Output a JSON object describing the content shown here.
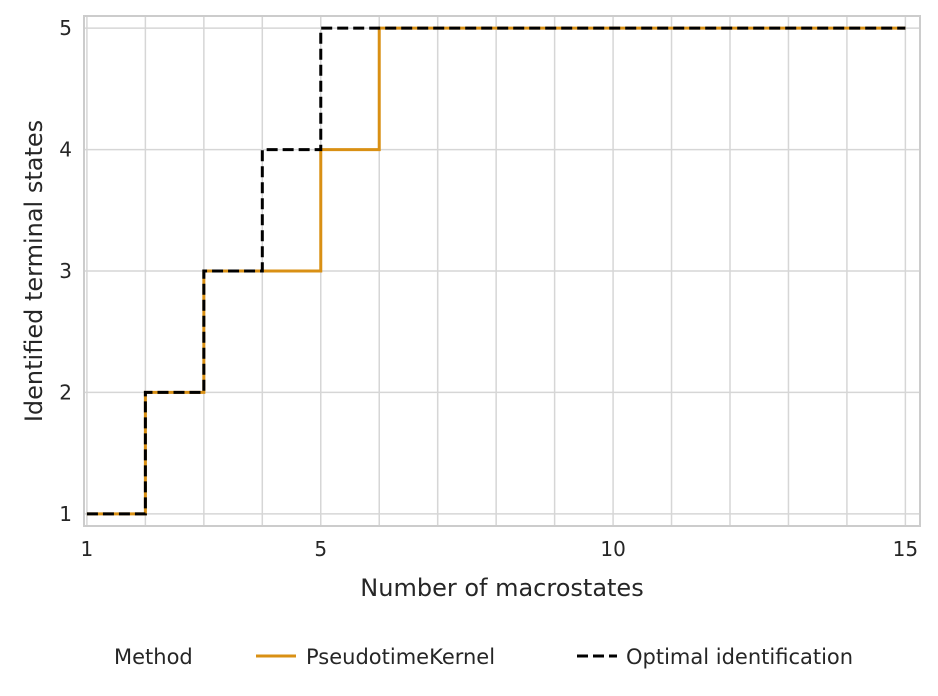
{
  "chart_data": {
    "type": "line",
    "step": true,
    "title": "",
    "xlabel": "Number of macrostates",
    "ylabel": "Identified terminal states",
    "xlim": [
      0.95,
      15.25
    ],
    "ylim": [
      0.9,
      5.1
    ],
    "xticks": [
      1,
      5,
      10,
      15
    ],
    "x_gridlines": [
      1,
      2,
      3,
      4,
      5,
      6,
      7,
      8,
      9,
      10,
      11,
      12,
      13,
      14,
      15
    ],
    "yticks": [
      1,
      2,
      3,
      4,
      5
    ],
    "grid": true,
    "legend_placement": "bottom-center",
    "legend_title": "Method",
    "x": [
      1,
      2,
      3,
      4,
      5,
      6,
      7,
      8,
      9,
      10,
      11,
      12,
      13,
      14,
      15
    ],
    "series": [
      {
        "name": "PseudotimeKernel",
        "color": "#D99014",
        "style": "solid",
        "values": [
          1,
          2,
          3,
          3,
          4,
          5,
          5,
          5,
          5,
          5,
          5,
          5,
          5,
          5,
          5
        ]
      },
      {
        "name": "Optimal identification",
        "color": "#000000",
        "style": "dashed",
        "values": [
          1,
          2,
          3,
          4,
          5,
          5,
          5,
          5,
          5,
          5,
          5,
          5,
          5,
          5,
          5
        ]
      }
    ]
  }
}
